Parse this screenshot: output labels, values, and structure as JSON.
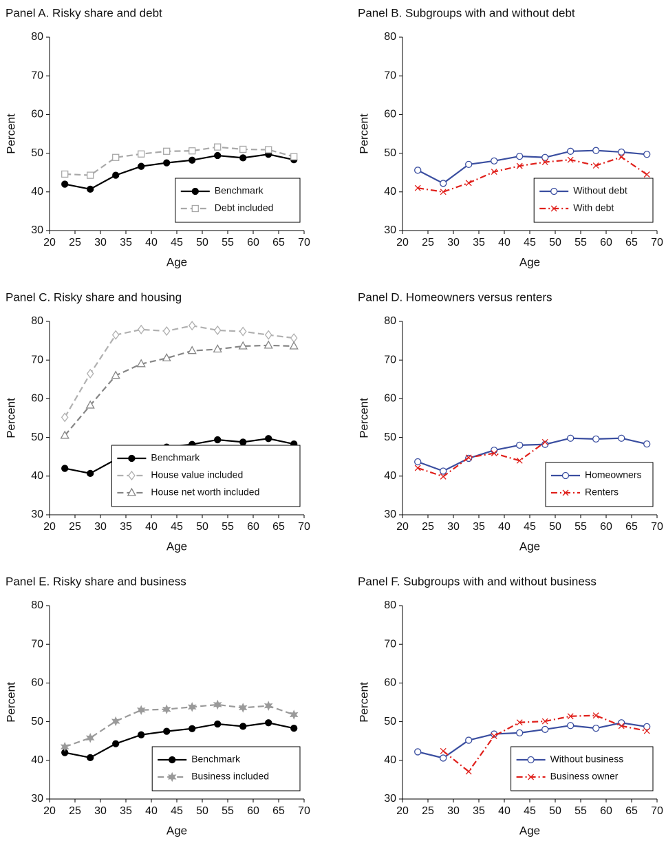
{
  "chart_data": [
    {
      "type": "line",
      "title": "Panel A. Risky share and debt",
      "xlabel": "Age",
      "ylabel": "Percent",
      "x": [
        23,
        28,
        33,
        38,
        43,
        48,
        53,
        58,
        63,
        68
      ],
      "xlim": [
        20,
        70
      ],
      "xticks": [
        20,
        25,
        30,
        35,
        40,
        45,
        50,
        55,
        60,
        65,
        70
      ],
      "ylim": [
        30,
        80
      ],
      "yticks": [
        30,
        40,
        50,
        60,
        70,
        80
      ],
      "legend": "lower right",
      "series": [
        {
          "name": "Benchmark",
          "color": "#000000",
          "marker": "filled-circle",
          "dash": "solid",
          "values": [
            42,
            40.7,
            44.3,
            46.6,
            47.5,
            48.2,
            49.4,
            48.8,
            49.7,
            48.3
          ]
        },
        {
          "name": "Debt included",
          "color": "#a8a8a8",
          "marker": "square",
          "dash": "dashed",
          "values": [
            44.6,
            44.3,
            48.9,
            49.8,
            50.5,
            50.6,
            51.6,
            51.0,
            50.9,
            49.1
          ]
        }
      ]
    },
    {
      "type": "line",
      "title": "Panel B. Subgroups with and without debt",
      "xlabel": "Age",
      "ylabel": "Percent",
      "x": [
        23,
        28,
        33,
        38,
        43,
        48,
        53,
        58,
        63,
        68
      ],
      "xlim": [
        20,
        70
      ],
      "xticks": [
        20,
        25,
        30,
        35,
        40,
        45,
        50,
        55,
        60,
        65,
        70
      ],
      "ylim": [
        30,
        80
      ],
      "yticks": [
        30,
        40,
        50,
        60,
        70,
        80
      ],
      "legend": "lower right",
      "series": [
        {
          "name": "Without debt",
          "color": "#3a4ea0",
          "marker": "circle",
          "dash": "solid",
          "values": [
            45.6,
            42.2,
            47.1,
            48.0,
            49.2,
            48.9,
            50.5,
            50.7,
            50.3,
            49.7
          ]
        },
        {
          "name": "With debt",
          "color": "#e0201b",
          "marker": "x",
          "dash": "dashdot",
          "values": [
            41.0,
            40.0,
            42.3,
            45.2,
            46.7,
            47.7,
            48.3,
            46.8,
            49.0,
            44.5
          ]
        }
      ]
    },
    {
      "type": "line",
      "title": "Panel C. Risky share and housing",
      "xlabel": "Age",
      "ylabel": "Percent",
      "x": [
        23,
        28,
        33,
        38,
        43,
        48,
        53,
        58,
        63,
        68
      ],
      "xlim": [
        20,
        70
      ],
      "xticks": [
        20,
        25,
        30,
        35,
        40,
        45,
        50,
        55,
        60,
        65,
        70
      ],
      "ylim": [
        30,
        80
      ],
      "yticks": [
        30,
        40,
        50,
        60,
        70,
        80
      ],
      "legend": "lower right",
      "series": [
        {
          "name": "Benchmark",
          "color": "#000000",
          "marker": "filled-circle",
          "dash": "solid",
          "values": [
            42,
            40.7,
            44.3,
            46.6,
            47.5,
            48.2,
            49.4,
            48.8,
            49.7,
            48.3
          ]
        },
        {
          "name": "House value included",
          "color": "#b0b0b0",
          "marker": "diamond",
          "dash": "dashed",
          "values": [
            55.2,
            66.5,
            76.5,
            77.9,
            77.5,
            78.9,
            77.7,
            77.4,
            76.5,
            75.7
          ]
        },
        {
          "name": "House net worth included",
          "color": "#858585",
          "marker": "triangle",
          "dash": "dashed",
          "values": [
            50.5,
            58.3,
            66.0,
            69.0,
            70.5,
            72.4,
            72.8,
            73.6,
            73.8,
            73.6
          ]
        }
      ]
    },
    {
      "type": "line",
      "title": "Panel D. Homeowners versus renters",
      "xlabel": "Age",
      "ylabel": "Percent",
      "x": [
        23,
        28,
        33,
        38,
        43,
        48,
        53,
        58,
        63,
        68
      ],
      "xlim": [
        20,
        70
      ],
      "xticks": [
        20,
        25,
        30,
        35,
        40,
        45,
        50,
        55,
        60,
        65,
        70
      ],
      "ylim": [
        30,
        80
      ],
      "yticks": [
        30,
        40,
        50,
        60,
        70,
        80
      ],
      "legend": "lower right",
      "series": [
        {
          "name": "Homeowners",
          "color": "#3a4ea0",
          "marker": "circle",
          "dash": "solid",
          "values": [
            43.7,
            41.3,
            44.6,
            46.7,
            48.0,
            48.2,
            49.8,
            49.6,
            49.8,
            48.3
          ]
        },
        {
          "name": "Renters",
          "color": "#e0201b",
          "marker": "x",
          "dash": "dashdot",
          "values": [
            42.1,
            39.9,
            44.8,
            45.9,
            44.0,
            48.8,
            null,
            null,
            null,
            null
          ]
        }
      ]
    },
    {
      "type": "line",
      "title": "Panel E. Risky share and business",
      "xlabel": "Age",
      "ylabel": "Percent",
      "x": [
        23,
        28,
        33,
        38,
        43,
        48,
        53,
        58,
        63,
        68
      ],
      "xlim": [
        20,
        70
      ],
      "xticks": [
        20,
        25,
        30,
        35,
        40,
        45,
        50,
        55,
        60,
        65,
        70
      ],
      "ylim": [
        30,
        80
      ],
      "yticks": [
        30,
        40,
        50,
        60,
        70,
        80
      ],
      "legend": "lower right",
      "series": [
        {
          "name": "Benchmark",
          "color": "#000000",
          "marker": "filled-circle",
          "dash": "solid",
          "values": [
            42,
            40.7,
            44.3,
            46.6,
            47.5,
            48.2,
            49.4,
            48.8,
            49.7,
            48.3
          ]
        },
        {
          "name": "Business included",
          "color": "#9a9a9a",
          "marker": "star",
          "dash": "dashed",
          "values": [
            43.5,
            45.8,
            50.1,
            53.0,
            53.2,
            53.8,
            54.4,
            53.6,
            54.1,
            51.8
          ]
        }
      ]
    },
    {
      "type": "line",
      "title": "Panel F. Subgroups with and without business",
      "xlabel": "Age",
      "ylabel": "Percent",
      "x": [
        23,
        28,
        33,
        38,
        43,
        48,
        53,
        58,
        63,
        68
      ],
      "xlim": [
        20,
        70
      ],
      "xticks": [
        20,
        25,
        30,
        35,
        40,
        45,
        50,
        55,
        60,
        65,
        70
      ],
      "ylim": [
        30,
        80
      ],
      "yticks": [
        30,
        40,
        50,
        60,
        70,
        80
      ],
      "legend": "lower right",
      "series": [
        {
          "name": "Without business",
          "color": "#3a4ea0",
          "marker": "circle",
          "dash": "solid",
          "values": [
            42.2,
            40.6,
            45.2,
            46.8,
            47.1,
            48.0,
            49.0,
            48.3,
            49.7,
            48.7
          ]
        },
        {
          "name": "Business owner",
          "color": "#e0201b",
          "marker": "x",
          "dash": "dashdot",
          "values": [
            null,
            42.4,
            37.1,
            46.3,
            49.8,
            50.1,
            51.4,
            51.6,
            48.9,
            47.6
          ]
        }
      ]
    }
  ]
}
